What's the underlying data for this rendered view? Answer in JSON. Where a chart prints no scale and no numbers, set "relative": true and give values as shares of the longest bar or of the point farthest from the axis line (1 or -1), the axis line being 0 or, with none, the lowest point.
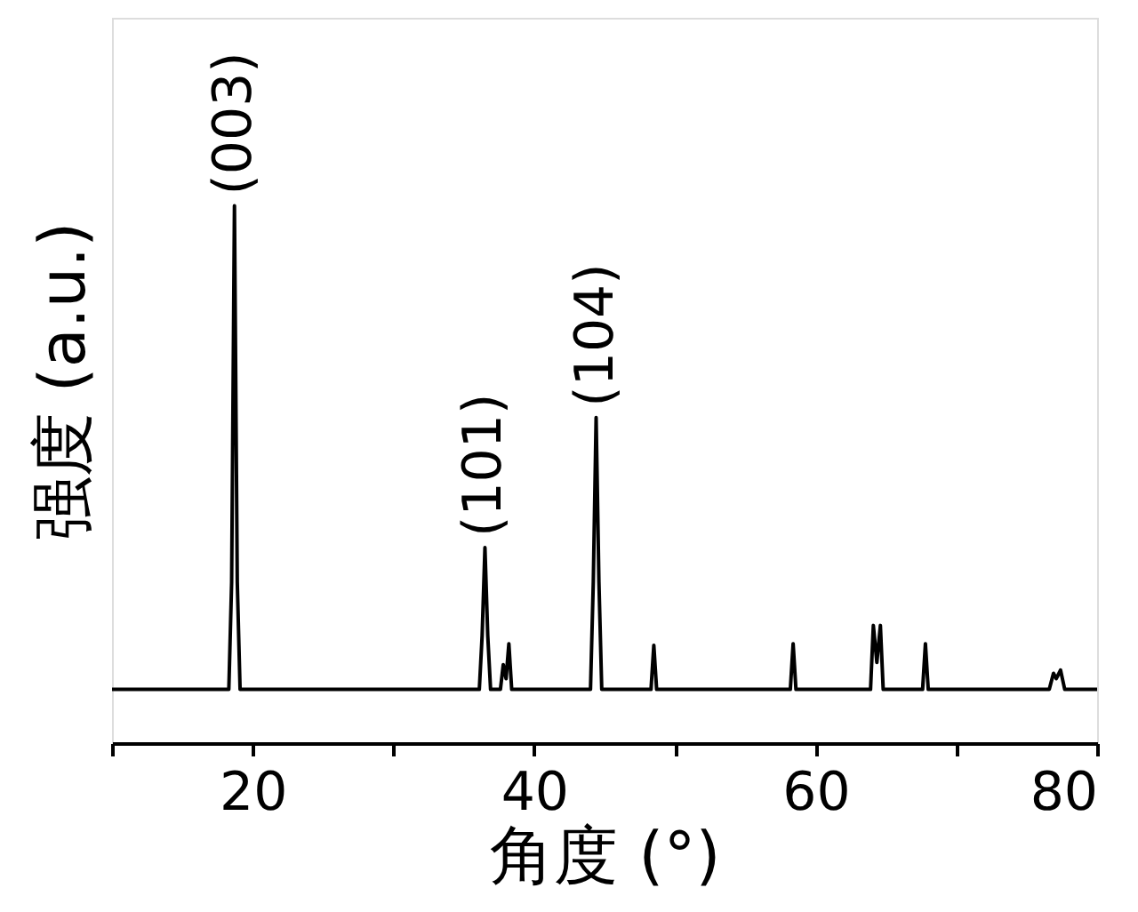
{
  "chart_data": {
    "type": "line",
    "relative": true,
    "xlabel": "角度 (°)",
    "ylabel": "强度 (a.u.)",
    "xlim": [
      10,
      80
    ],
    "xticks": [
      {
        "value": 10,
        "label": null
      },
      20,
      {
        "value": 30,
        "label": null
      },
      40,
      {
        "value": 50,
        "label": null
      },
      60,
      {
        "value": 70,
        "label": null
      },
      80
    ],
    "tick_labels": "x",
    "grid": false,
    "series": [
      {
        "color": "#000000",
        "x": [
          10,
          15,
          18.3,
          18.5,
          18.7,
          18.9,
          19.1,
          25,
          30,
          36.1,
          36.3,
          36.5,
          36.7,
          36.9,
          37.6,
          37.8,
          38.0,
          38.2,
          38.4,
          40,
          44.0,
          44.2,
          44.4,
          44.6,
          44.8,
          48.3,
          48.5,
          48.7,
          52,
          58.2,
          58.4,
          58.6,
          63.9,
          64.1,
          64.35,
          64.6,
          64.8,
          67.6,
          67.8,
          68.0,
          72,
          76.6,
          76.9,
          77.1,
          77.4,
          77.7,
          80
        ],
        "values": [
          0.1,
          0.1,
          0.1,
          0.3,
          1.0,
          0.3,
          0.1,
          0.1,
          0.1,
          0.1,
          0.2,
          0.364,
          0.2,
          0.1,
          0.1,
          0.146,
          0.12,
          0.185,
          0.1,
          0.1,
          0.1,
          0.3,
          0.606,
          0.3,
          0.1,
          0.1,
          0.182,
          0.1,
          0.1,
          0.1,
          0.185,
          0.1,
          0.1,
          0.219,
          0.15,
          0.219,
          0.1,
          0.1,
          0.185,
          0.1,
          0.1,
          0.1,
          0.13,
          0.12,
          0.136,
          0.1,
          0.1
        ]
      }
    ],
    "annotations": [
      {
        "text": "(003)",
        "x": 18.7,
        "y": 1.0
      },
      {
        "text": "(101)",
        "x": 36.5,
        "y": 0.364
      },
      {
        "text": "(104)",
        "x": 44.4,
        "y": 0.606
      }
    ]
  }
}
